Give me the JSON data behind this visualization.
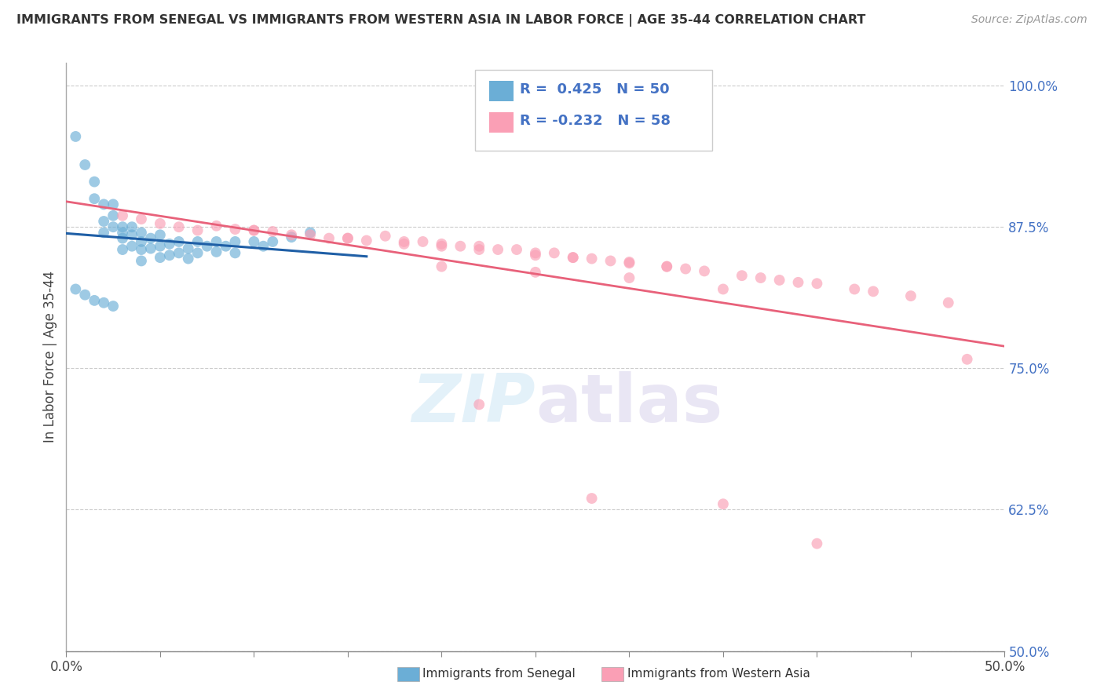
{
  "title": "IMMIGRANTS FROM SENEGAL VS IMMIGRANTS FROM WESTERN ASIA IN LABOR FORCE | AGE 35-44 CORRELATION CHART",
  "source": "Source: ZipAtlas.com",
  "xlabel_blue": "Immigrants from Senegal",
  "xlabel_pink": "Immigrants from Western Asia",
  "ylabel": "In Labor Force | Age 35-44",
  "xlim": [
    0.0,
    0.5
  ],
  "ylim": [
    0.5,
    1.02
  ],
  "xticks": [
    0.0,
    0.05,
    0.1,
    0.15,
    0.2,
    0.25,
    0.3,
    0.35,
    0.4,
    0.45,
    0.5
  ],
  "xticklabels_show": [
    "0.0%",
    "50.0%"
  ],
  "xticklabels_show_pos": [
    0.0,
    0.5
  ],
  "yticks": [
    0.5,
    0.625,
    0.75,
    0.875,
    1.0
  ],
  "yticklabels": [
    "50.0%",
    "62.5%",
    "75.0%",
    "87.5%",
    "100.0%"
  ],
  "R_blue": 0.425,
  "N_blue": 50,
  "R_pink": -0.232,
  "N_pink": 58,
  "blue_color": "#6baed6",
  "pink_color": "#fa9fb5",
  "blue_line_color": "#1f5fa6",
  "pink_line_color": "#e8617a",
  "watermark": "ZIPatlas",
  "blue_x": [
    0.005,
    0.01,
    0.015,
    0.015,
    0.02,
    0.02,
    0.02,
    0.025,
    0.025,
    0.025,
    0.03,
    0.03,
    0.03,
    0.03,
    0.035,
    0.035,
    0.035,
    0.04,
    0.04,
    0.04,
    0.04,
    0.045,
    0.045,
    0.05,
    0.05,
    0.05,
    0.055,
    0.055,
    0.06,
    0.06,
    0.065,
    0.065,
    0.07,
    0.07,
    0.075,
    0.08,
    0.08,
    0.085,
    0.09,
    0.09,
    0.1,
    0.105,
    0.11,
    0.12,
    0.13,
    0.005,
    0.01,
    0.015,
    0.02,
    0.025
  ],
  "blue_y": [
    0.955,
    0.93,
    0.915,
    0.9,
    0.895,
    0.88,
    0.87,
    0.895,
    0.885,
    0.875,
    0.875,
    0.87,
    0.865,
    0.855,
    0.875,
    0.868,
    0.858,
    0.87,
    0.862,
    0.855,
    0.845,
    0.865,
    0.856,
    0.868,
    0.858,
    0.848,
    0.86,
    0.85,
    0.862,
    0.852,
    0.856,
    0.847,
    0.862,
    0.852,
    0.858,
    0.862,
    0.853,
    0.858,
    0.862,
    0.852,
    0.862,
    0.858,
    0.862,
    0.866,
    0.87,
    0.82,
    0.815,
    0.81,
    0.808,
    0.805
  ],
  "pink_x": [
    0.03,
    0.04,
    0.05,
    0.06,
    0.07,
    0.08,
    0.09,
    0.1,
    0.11,
    0.12,
    0.13,
    0.14,
    0.15,
    0.16,
    0.17,
    0.18,
    0.19,
    0.2,
    0.21,
    0.22,
    0.23,
    0.24,
    0.25,
    0.26,
    0.27,
    0.28,
    0.29,
    0.3,
    0.32,
    0.33,
    0.34,
    0.36,
    0.37,
    0.38,
    0.39,
    0.4,
    0.42,
    0.43,
    0.45,
    0.47,
    0.1,
    0.15,
    0.2,
    0.25,
    0.3,
    0.2,
    0.25,
    0.3,
    0.35,
    0.18,
    0.22,
    0.27,
    0.32,
    0.22,
    0.28,
    0.48,
    0.35,
    0.4
  ],
  "pink_y": [
    0.885,
    0.882,
    0.878,
    0.875,
    0.872,
    0.876,
    0.873,
    0.872,
    0.871,
    0.868,
    0.868,
    0.865,
    0.865,
    0.863,
    0.867,
    0.862,
    0.862,
    0.86,
    0.858,
    0.858,
    0.855,
    0.855,
    0.85,
    0.852,
    0.848,
    0.847,
    0.845,
    0.843,
    0.84,
    0.838,
    0.836,
    0.832,
    0.83,
    0.828,
    0.826,
    0.825,
    0.82,
    0.818,
    0.814,
    0.808,
    0.872,
    0.865,
    0.858,
    0.852,
    0.844,
    0.84,
    0.835,
    0.83,
    0.82,
    0.86,
    0.855,
    0.848,
    0.84,
    0.718,
    0.635,
    0.758,
    0.63,
    0.595
  ]
}
